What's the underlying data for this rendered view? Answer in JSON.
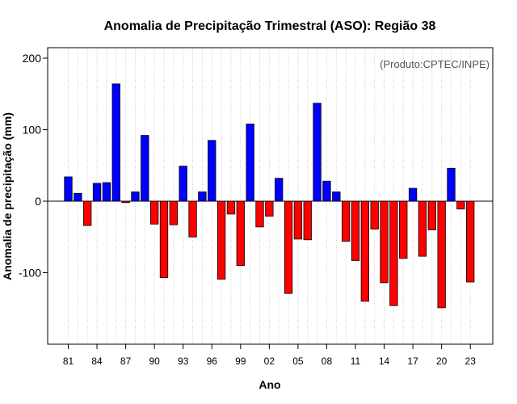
{
  "chart_data": {
    "type": "bar",
    "title": "Anomalia de Precipitação Trimestral (ASO): Região 38",
    "xlabel": "Ano",
    "ylabel": "Anomalia de precipitação (mm)",
    "credit": "(Produto:CPTEC/INPE)",
    "ylim": [
      -200,
      215
    ],
    "y_ticks": [
      -100,
      0,
      100,
      200
    ],
    "x_tick_labels": [
      "81",
      "84",
      "87",
      "90",
      "93",
      "96",
      "99",
      "02",
      "05",
      "08",
      "11",
      "14",
      "17",
      "20",
      "23"
    ],
    "x_tick_years": [
      1981,
      1984,
      1987,
      1990,
      1993,
      1996,
      1999,
      2002,
      2005,
      2008,
      2011,
      2014,
      2017,
      2020,
      2023
    ],
    "grid": true,
    "colors": {
      "positive": "#0000ff",
      "negative": "#ff0000",
      "grid": "#cccccc"
    },
    "categories": [
      1981,
      1982,
      1983,
      1984,
      1985,
      1986,
      1987,
      1988,
      1989,
      1990,
      1991,
      1992,
      1993,
      1994,
      1995,
      1996,
      1997,
      1998,
      1999,
      2000,
      2001,
      2002,
      2003,
      2004,
      2005,
      2006,
      2007,
      2008,
      2009,
      2010,
      2011,
      2012,
      2013,
      2014,
      2015,
      2016,
      2017,
      2018,
      2019,
      2020,
      2021,
      2022,
      2023
    ],
    "values": [
      34,
      11,
      -34,
      25,
      26,
      164,
      -2,
      13,
      92,
      -32,
      -107,
      -33,
      49,
      -50,
      13,
      85,
      -109,
      -18,
      -90,
      108,
      -36,
      -21,
      32,
      -129,
      -53,
      -54,
      137,
      28,
      13,
      -56,
      -83,
      -140,
      -39,
      -114,
      -146,
      -80,
      18,
      -77,
      -40,
      -149,
      46,
      -11,
      -113
    ]
  }
}
